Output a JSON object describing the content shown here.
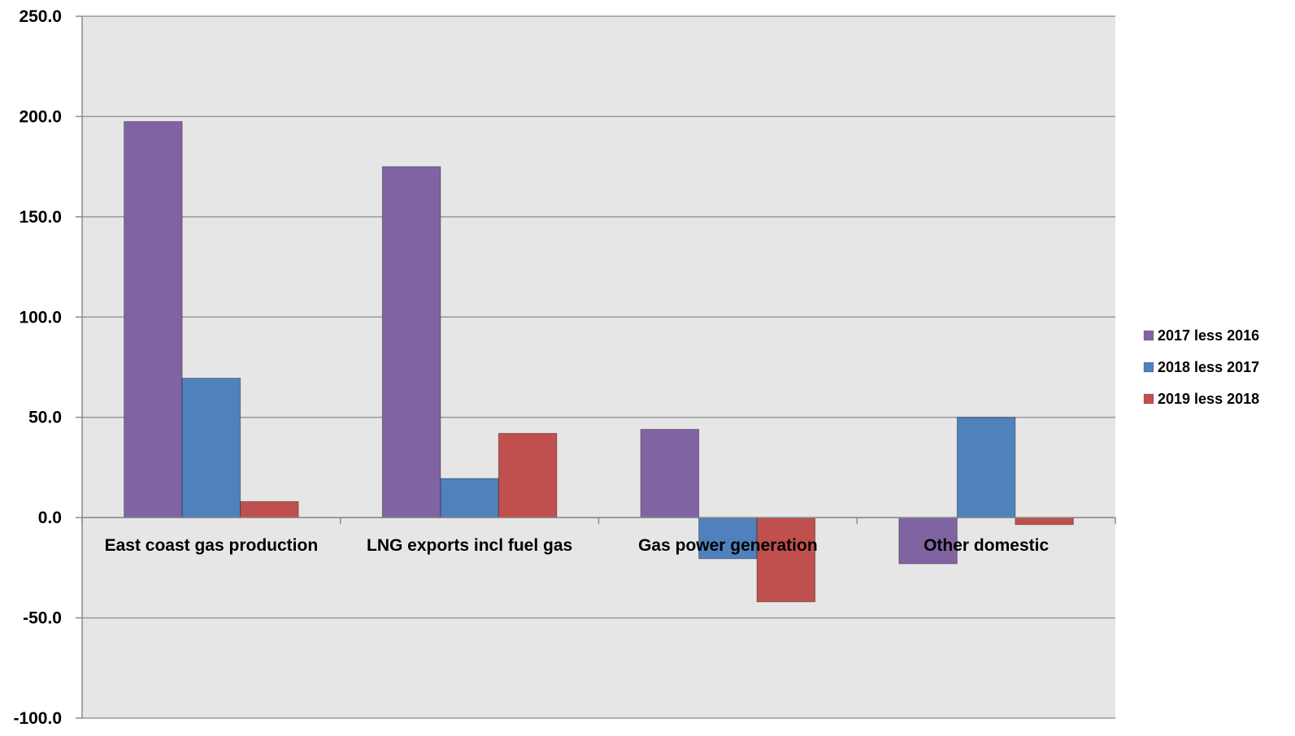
{
  "chart_data": {
    "type": "bar",
    "categories": [
      "East coast gas production",
      "LNG exports incl fuel gas",
      "Gas power generation",
      "Other domestic"
    ],
    "series": [
      {
        "name": "2017 less 2016",
        "color": "#8064A2",
        "values": [
          197.5,
          175.0,
          44.0,
          -23.0
        ]
      },
      {
        "name": "2018 less 2017",
        "color": "#4F81BD",
        "values": [
          69.5,
          19.5,
          -20.5,
          50.0
        ]
      },
      {
        "name": "2019 less 2018",
        "color": "#C0504D",
        "values": [
          8.0,
          42.0,
          -42.0,
          -3.5
        ]
      }
    ],
    "ylim": [
      -100,
      250
    ],
    "yticks": [
      "250.0",
      "200.0",
      "150.0",
      "100.0",
      "50.0",
      "0.0",
      "-50.0",
      "-100.0"
    ],
    "ytick_values": [
      250,
      200,
      150,
      100,
      50,
      0,
      -50,
      -100
    ],
    "grid": true,
    "legend_position": "right",
    "plot_background": "#E6E6E6",
    "gridline_color": "#9A9A9A"
  }
}
